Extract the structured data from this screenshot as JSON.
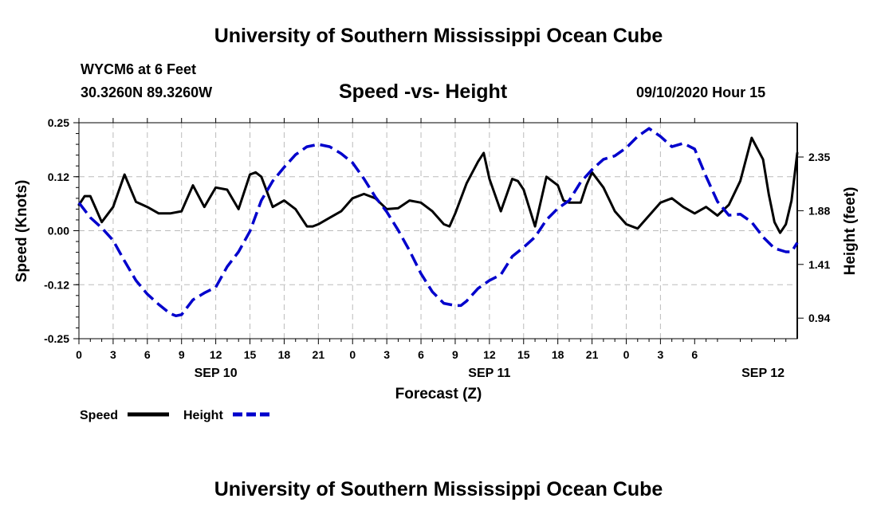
{
  "header": {
    "top_title": "University of Southern Mississippi Ocean Cube",
    "bottom_title": "University of Southern Mississippi Ocean Cube",
    "station_name": "WYCM6 at 6 Feet",
    "station_coords": "30.3260N 89.3260W",
    "date_label": "09/10/2020 Hour 15"
  },
  "colors": {
    "speed": "#000000",
    "height": "#0000cc",
    "grid": "#bbbbbb"
  },
  "chart_data": {
    "type": "line",
    "title": "Speed -vs- Height",
    "xlabel": "Forecast (Z)",
    "ylabel": "Speed (Knots)",
    "y2label": "Height (feet)",
    "x_ticks": [
      "0",
      "3",
      "6",
      "9",
      "12",
      "15",
      "18",
      "21",
      "0",
      "3",
      "6",
      "9",
      "12",
      "15",
      "18",
      "21",
      "0",
      "3",
      "6"
    ],
    "day_labels": [
      {
        "label": "SEP 10",
        "hour": 12
      },
      {
        "label": "SEP 11",
        "hour": 36
      },
      {
        "label": "SEP 12",
        "hour": 60
      }
    ],
    "xlim": [
      0,
      63
    ],
    "ylim": [
      -0.25,
      0.25
    ],
    "y_ticks": [
      {
        "value": 0.25,
        "label": "0.25"
      },
      {
        "value": 0.125,
        "label": "0.12"
      },
      {
        "value": 0.0,
        "label": "0.00"
      },
      {
        "value": -0.125,
        "label": "-0.12"
      },
      {
        "value": -0.25,
        "label": "-0.25"
      }
    ],
    "y2lim": [
      0.76,
      2.65
    ],
    "y2_ticks": [
      {
        "value": 2.35,
        "label": "2.35"
      },
      {
        "value": 1.88,
        "label": "1.88"
      },
      {
        "value": 1.41,
        "label": "1.41"
      },
      {
        "value": 0.94,
        "label": "0.94"
      }
    ],
    "legend": [
      {
        "name": "Speed",
        "style": "solid"
      },
      {
        "name": "Height",
        "style": "dashed"
      }
    ],
    "series": [
      {
        "name": "Speed",
        "axis": "left",
        "x": [
          0,
          0.5,
          1,
          1.5,
          2,
          3,
          4,
          5,
          6,
          7,
          8,
          9,
          10,
          11,
          12,
          13,
          14,
          15,
          15.5,
          16,
          17,
          18,
          19,
          20,
          20.5,
          21,
          22,
          23,
          24,
          25,
          25.5,
          26,
          27,
          28,
          29,
          30,
          31,
          32,
          32.5,
          33,
          34,
          35,
          35.5,
          36,
          37,
          38,
          38.5,
          39,
          40,
          41,
          42,
          42.5,
          43,
          44,
          44.5,
          45,
          46,
          47,
          48,
          49,
          50,
          51,
          52,
          53,
          54,
          55,
          56,
          57,
          58,
          59,
          60,
          60.5,
          61,
          61.5,
          62,
          62.5,
          63
        ],
        "values": [
          0.06,
          0.08,
          0.08,
          0.05,
          0.02,
          0.055,
          0.13,
          0.067,
          0.055,
          0.04,
          0.04,
          0.045,
          0.105,
          0.055,
          0.1,
          0.095,
          0.05,
          0.13,
          0.135,
          0.125,
          0.055,
          0.07,
          0.05,
          0.01,
          0.01,
          0.015,
          0.03,
          0.045,
          0.075,
          0.085,
          0.08,
          0.075,
          0.05,
          0.052,
          0.07,
          0.065,
          0.045,
          0.015,
          0.01,
          0.04,
          0.11,
          0.16,
          0.18,
          0.12,
          0.045,
          0.12,
          0.115,
          0.095,
          0.01,
          0.125,
          0.105,
          0.07,
          0.065,
          0.065,
          0.105,
          0.135,
          0.1,
          0.045,
          0.015,
          0.005,
          0.035,
          0.065,
          0.075,
          0.055,
          0.04,
          0.055,
          0.035,
          0.06,
          0.115,
          0.215,
          0.165,
          0.085,
          0.02,
          -0.005,
          0.015,
          0.07,
          0.18
        ]
      },
      {
        "name": "Height",
        "axis": "right",
        "x": [
          0,
          1,
          2,
          3,
          4,
          5,
          6,
          7,
          8,
          8.5,
          9,
          10,
          11,
          12,
          13,
          14,
          15,
          16,
          17,
          18,
          19,
          20,
          21,
          22,
          23,
          24,
          25,
          26,
          27,
          28,
          29,
          30,
          31,
          32,
          33,
          33.5,
          34,
          35,
          36,
          37,
          38,
          39,
          40,
          41,
          42,
          43,
          44,
          45,
          46,
          47,
          48,
          49,
          50,
          51,
          52,
          53,
          54,
          55,
          56,
          57,
          58,
          59,
          60,
          61,
          62,
          62.5,
          63
        ],
        "values": [
          1.95,
          1.82,
          1.73,
          1.62,
          1.44,
          1.27,
          1.15,
          1.06,
          0.98,
          0.96,
          0.97,
          1.1,
          1.16,
          1.21,
          1.39,
          1.52,
          1.7,
          1.97,
          2.14,
          2.26,
          2.37,
          2.44,
          2.46,
          2.44,
          2.38,
          2.3,
          2.16,
          2.0,
          1.87,
          1.71,
          1.53,
          1.33,
          1.17,
          1.07,
          1.05,
          1.05,
          1.09,
          1.2,
          1.27,
          1.32,
          1.48,
          1.56,
          1.65,
          1.8,
          1.9,
          1.97,
          2.13,
          2.24,
          2.33,
          2.36,
          2.43,
          2.53,
          2.6,
          2.53,
          2.44,
          2.47,
          2.42,
          2.18,
          1.96,
          1.84,
          1.85,
          1.78,
          1.65,
          1.55,
          1.52,
          1.52,
          1.6
        ]
      }
    ]
  }
}
